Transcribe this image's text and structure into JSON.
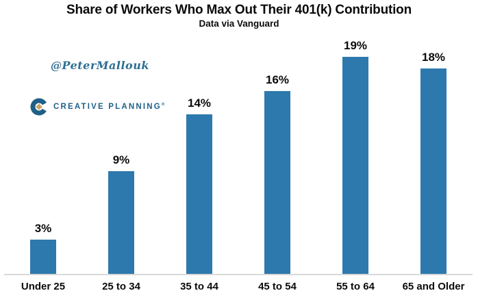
{
  "header": {
    "title": "Share of Workers Who Max Out Their 401(k) Contribution",
    "subtitle": "Data via Vanguard"
  },
  "watermarks": {
    "twitter_handle": "@PeterMallouk",
    "logo_text": "CREATIVE PLANNING",
    "logo_mark": "®"
  },
  "chart_data": {
    "type": "bar",
    "title": "Share of Workers Who Max Out Their 401(k) Contribution",
    "subtitle": "Data via Vanguard",
    "categories": [
      "Under 25",
      "25 to 34",
      "35 to 44",
      "45 to 54",
      "55 to 64",
      "65 and Older"
    ],
    "values": [
      3,
      9,
      14,
      16,
      19,
      18
    ],
    "value_labels": [
      "3%",
      "9%",
      "14%",
      "16%",
      "19%",
      "18%"
    ],
    "xlabel": "",
    "ylabel": "",
    "ylim": [
      0,
      21
    ],
    "grid": false,
    "legend": false,
    "data_labels_position": "above-bars",
    "bar_color": "#2D79AD",
    "axis_line_color": "#D9D9D9"
  },
  "colors": {
    "background": "#FFFFFF",
    "text": "#0B0B0B",
    "bar_blue": "#2D79AD",
    "axis_gray": "#D9D9D9",
    "handle_blue": "#2E6E93",
    "logo_blue": "#1F5F88",
    "logo_gold": "#C7A363"
  }
}
